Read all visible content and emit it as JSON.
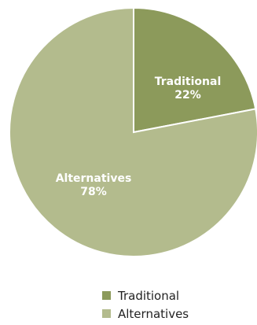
{
  "chart_data": {
    "type": "pie",
    "title": "",
    "slices": [
      {
        "name": "Traditional",
        "value": 22,
        "value_label": "22%",
        "color": "#8c9a5b"
      },
      {
        "name": "Alternatives",
        "value": 78,
        "value_label": "78%",
        "color": "#b3bb8d"
      }
    ],
    "start_angle_deg": 0,
    "direction": "clockwise",
    "legend_position": "bottom-center",
    "slice_border_color": "#ffffff"
  },
  "legend": {
    "items": [
      {
        "label": "Traditional",
        "color": "#8c9a5b"
      },
      {
        "label": "Alternatives",
        "color": "#b3bb8d"
      }
    ]
  }
}
